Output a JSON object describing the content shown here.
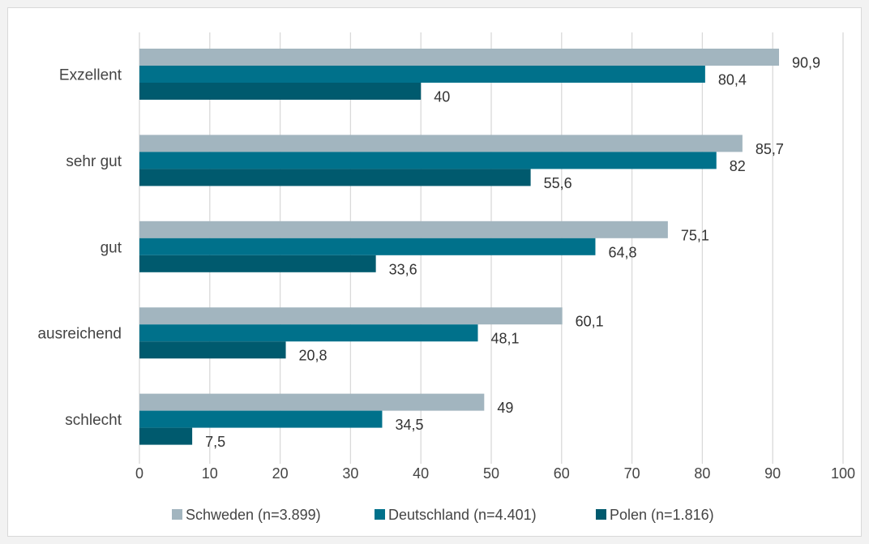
{
  "chart_data": {
    "type": "bar",
    "orientation": "horizontal",
    "categories": [
      "Exzellent",
      "sehr gut",
      "gut",
      "ausreichend",
      "schlecht"
    ],
    "series": [
      {
        "name": "Schweden (n=3.899)",
        "color": "#a2b5bf",
        "values": [
          90.9,
          85.7,
          75.1,
          60.1,
          49
        ],
        "labels": [
          "90,9",
          "85,7",
          "75,1",
          "60,1",
          "49"
        ]
      },
      {
        "name": "Deutschland (n=4.401)",
        "color": "#00718b",
        "values": [
          80.4,
          82,
          64.8,
          48.1,
          34.5
        ],
        "labels": [
          "80,4",
          "82",
          "64,8",
          "48,1",
          "34,5"
        ]
      },
      {
        "name": "Polen (n=1.816)",
        "color": "#005a6e",
        "values": [
          40,
          55.6,
          33.6,
          20.8,
          7.5
        ],
        "labels": [
          "40",
          "55,6",
          "33,6",
          "20,8",
          "7,5"
        ]
      }
    ],
    "xlim": [
      0,
      100
    ],
    "ticks": [
      0,
      10,
      20,
      30,
      40,
      50,
      60,
      70,
      80,
      90,
      100
    ],
    "grid": "vertical",
    "legend_position": "bottom"
  },
  "colors": {
    "grid": "#d9d9d9",
    "text": "#444444"
  }
}
